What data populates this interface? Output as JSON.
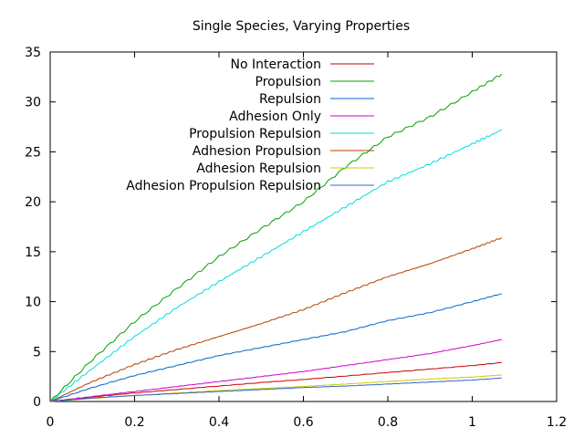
{
  "chart_data": {
    "type": "line",
    "title": "Single Species, Varying Properties",
    "xlabel": "",
    "ylabel": "",
    "xlim": [
      0,
      1.2
    ],
    "ylim": [
      0,
      35
    ],
    "xticks": [
      0,
      0.2,
      0.4,
      0.6,
      0.8,
      1,
      1.2
    ],
    "xtick_labels": [
      "0",
      "0.2",
      "0.4",
      "0.6",
      "0.8",
      "1",
      "1.2"
    ],
    "yticks": [
      0,
      5,
      10,
      15,
      20,
      25,
      30,
      35
    ],
    "ytick_labels": [
      "0",
      "5",
      "10",
      "15",
      "20",
      "25",
      "30",
      "35"
    ],
    "grid": false,
    "legend_position": "top-center",
    "series": [
      {
        "name": "No Interaction",
        "color": "#cc0000",
        "x": [
          0,
          0.1,
          0.2,
          0.3,
          0.4,
          0.5,
          0.6,
          0.7,
          0.8,
          0.9,
          1.0,
          1.07
        ],
        "y": [
          0,
          0.45,
          0.85,
          1.2,
          1.55,
          1.9,
          2.2,
          2.55,
          2.9,
          3.25,
          3.6,
          3.9
        ]
      },
      {
        "name": "Propulsion",
        "color": "#00a000",
        "x": [
          0,
          0.1,
          0.2,
          0.3,
          0.4,
          0.5,
          0.6,
          0.7,
          0.8,
          0.9,
          1.0,
          1.07
        ],
        "y": [
          0,
          4.2,
          8.0,
          11.3,
          14.5,
          17.3,
          20.0,
          23.5,
          26.5,
          28.5,
          31.0,
          32.8
        ]
      },
      {
        "name": "Repulsion",
        "color": "#0066cc",
        "x": [
          0,
          0.1,
          0.2,
          0.3,
          0.4,
          0.5,
          0.6,
          0.7,
          0.8,
          0.9,
          1.0,
          1.07
        ],
        "y": [
          0,
          1.4,
          2.6,
          3.6,
          4.6,
          5.4,
          6.2,
          7.0,
          8.1,
          8.9,
          10.0,
          10.8
        ]
      },
      {
        "name": "Adhesion Only",
        "color": "#cc00cc",
        "x": [
          0,
          0.1,
          0.2,
          0.3,
          0.4,
          0.5,
          0.6,
          0.7,
          0.8,
          0.9,
          1.0,
          1.07
        ],
        "y": [
          0,
          0.5,
          1.0,
          1.5,
          2.0,
          2.5,
          3.0,
          3.6,
          4.2,
          4.8,
          5.6,
          6.2
        ]
      },
      {
        "name": "Propulsion Repulsion",
        "color": "#00dddd",
        "x": [
          0,
          0.1,
          0.2,
          0.3,
          0.4,
          0.5,
          0.6,
          0.7,
          0.8,
          0.9,
          1.0,
          1.07
        ],
        "y": [
          0,
          3.3,
          6.5,
          9.4,
          12.0,
          14.5,
          17.0,
          19.5,
          22.0,
          23.8,
          25.8,
          27.2
        ]
      },
      {
        "name": "Adhesion Propulsion",
        "color": "#b04000",
        "x": [
          0,
          0.1,
          0.2,
          0.3,
          0.4,
          0.5,
          0.6,
          0.7,
          0.8,
          0.9,
          1.0,
          1.07
        ],
        "y": [
          0,
          2.0,
          3.7,
          5.2,
          6.5,
          7.8,
          9.2,
          10.9,
          12.5,
          13.8,
          15.3,
          16.4
        ]
      },
      {
        "name": "Adhesion Repulsion",
        "color": "#cccc00",
        "x": [
          0,
          0.1,
          0.2,
          0.3,
          0.4,
          0.5,
          0.6,
          0.7,
          0.8,
          0.9,
          1.0,
          1.07
        ],
        "y": [
          0,
          0.3,
          0.6,
          0.85,
          1.1,
          1.3,
          1.5,
          1.75,
          2.0,
          2.25,
          2.45,
          2.65
        ]
      },
      {
        "name": "Adhesion Propulsion Repulsion",
        "color": "#3366cc",
        "x": [
          0,
          0.1,
          0.2,
          0.3,
          0.4,
          0.5,
          0.6,
          0.7,
          0.8,
          0.9,
          1.0,
          1.07
        ],
        "y": [
          0,
          0.35,
          0.6,
          0.8,
          1.0,
          1.2,
          1.4,
          1.55,
          1.75,
          1.95,
          2.15,
          2.35
        ]
      }
    ]
  }
}
